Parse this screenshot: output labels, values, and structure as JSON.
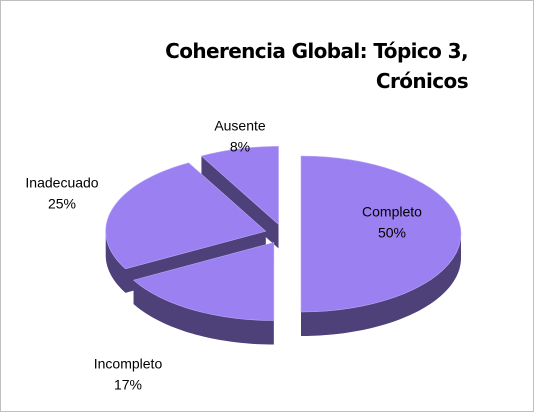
{
  "chart_data": {
    "type": "pie",
    "title": "Coherencia Global: Tópico 3, Crónicos",
    "categories": [
      "Completo",
      "Incompleto",
      "Inadecuado",
      "Ausente"
    ],
    "values": [
      50,
      17,
      25,
      8
    ],
    "value_labels": [
      "50%",
      "17%",
      "25%",
      "8%"
    ],
    "color": "#9b80f2"
  }
}
